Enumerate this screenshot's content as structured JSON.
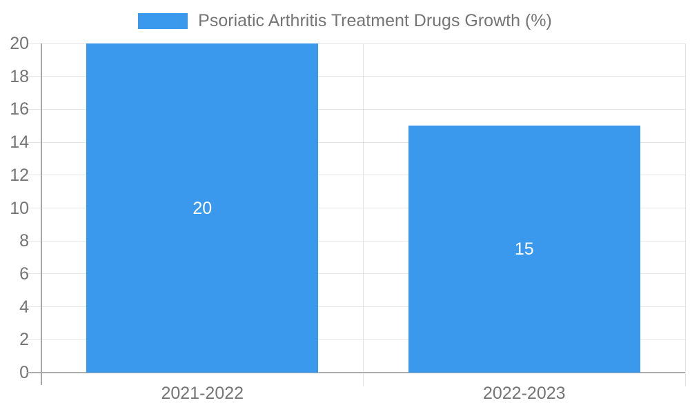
{
  "legend": {
    "label": "Psoriatic Arthritis Treatment Drugs Growth (%)"
  },
  "colors": {
    "bar": "#3a99ec",
    "gridline": "#e5e5e5",
    "axis_line": "#acacac",
    "tick_label": "#757575",
    "data_label": "#ffffff",
    "background": "#ffffff"
  },
  "chart_data": {
    "type": "bar",
    "title": "Psoriatic Arthritis Treatment Drugs Growth (%)",
    "categories": [
      "2021-2022",
      "2022-2023"
    ],
    "values": [
      20,
      15
    ],
    "data_labels": [
      "20",
      "15"
    ],
    "xlabel": "",
    "ylabel": "",
    "ylim": [
      0,
      20
    ],
    "yticks": [
      0,
      2,
      4,
      6,
      8,
      10,
      12,
      14,
      16,
      18,
      20
    ],
    "grid": true,
    "legend_position": "top",
    "bar_color": "#3a99ec"
  }
}
